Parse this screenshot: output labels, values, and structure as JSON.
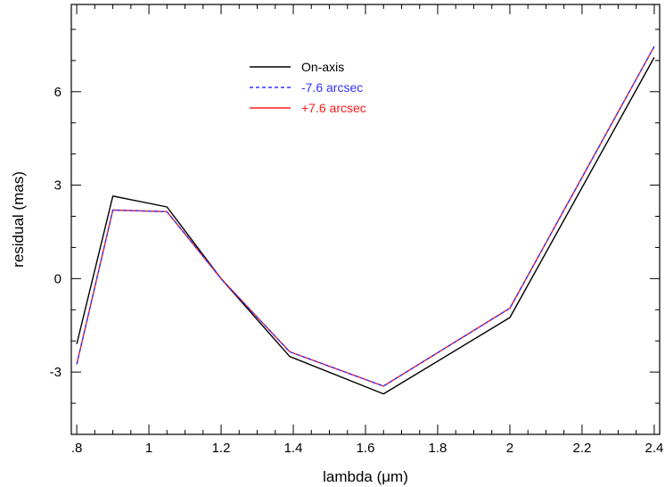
{
  "chart_data": {
    "type": "line",
    "xlabel": "lambda (μm)",
    "ylabel": "residual (mas)",
    "xlim": [
      0.785,
      2.415
    ],
    "ylim": [
      -5.0,
      8.8
    ],
    "x_ticks": [
      0.8,
      1.0,
      1.2,
      1.4,
      1.6,
      1.8,
      2.0,
      2.2,
      2.4
    ],
    "x_tick_labels": [
      ".8",
      "1",
      "1.2",
      "1.4",
      "1.6",
      "1.8",
      "2",
      "2.2",
      "2.4"
    ],
    "y_ticks": [
      -3,
      0,
      3,
      6
    ],
    "y_tick_labels": [
      "-3",
      "0",
      "3",
      "6"
    ],
    "grid": false,
    "legend_position": "top-center",
    "series": [
      {
        "name": "On-axis",
        "color": "#000000",
        "dash": "solid",
        "x": [
          0.8,
          0.9,
          1.05,
          1.2,
          1.39,
          1.65,
          2.0,
          2.4
        ],
        "y": [
          -2.1,
          2.65,
          2.3,
          0.0,
          -2.5,
          -3.7,
          -1.25,
          7.1
        ]
      },
      {
        "name": "-7.6 arcsec",
        "color": "#3333ff",
        "dash": "dashed",
        "x": [
          0.8,
          0.9,
          1.05,
          1.2,
          1.39,
          1.65,
          2.0,
          2.4
        ],
        "y": [
          -2.75,
          2.2,
          2.15,
          0.0,
          -2.35,
          -3.45,
          -0.95,
          7.45
        ]
      },
      {
        "name": "+7.6 arcsec",
        "color": "#ff1a1a",
        "dash": "solid",
        "x": [
          0.8,
          0.9,
          1.05,
          1.2,
          1.39,
          1.65,
          2.0,
          2.4
        ],
        "y": [
          -2.75,
          2.2,
          2.15,
          0.0,
          -2.35,
          -3.45,
          -0.95,
          7.45
        ]
      }
    ]
  }
}
